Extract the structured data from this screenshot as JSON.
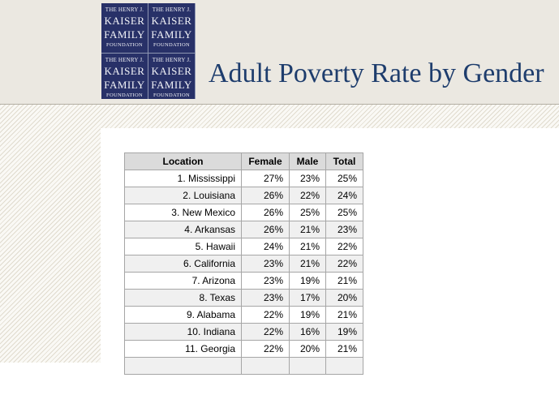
{
  "brand": {
    "logo_lines": [
      "THE HENRY J.",
      "KAISER",
      "FAMILY",
      "FOUNDATION"
    ]
  },
  "header": {
    "title": "Adult Poverty Rate by Gender"
  },
  "table": {
    "columns": [
      "Location",
      "Female",
      "Male",
      "Total"
    ],
    "rows": [
      [
        "1. Mississippi",
        "27%",
        "23%",
        "25%"
      ],
      [
        "2. Louisiana",
        "26%",
        "22%",
        "24%"
      ],
      [
        "3. New Mexico",
        "26%",
        "25%",
        "25%"
      ],
      [
        "4. Arkansas",
        "26%",
        "21%",
        "23%"
      ],
      [
        "5. Hawaii",
        "24%",
        "21%",
        "22%"
      ],
      [
        "6. California",
        "23%",
        "21%",
        "22%"
      ],
      [
        "7. Arizona",
        "23%",
        "19%",
        "21%"
      ],
      [
        "8. Texas",
        "23%",
        "17%",
        "20%"
      ],
      [
        "9. Alabama",
        "22%",
        "19%",
        "21%"
      ],
      [
        "10. Indiana",
        "22%",
        "16%",
        "19%"
      ],
      [
        "11. Georgia",
        "22%",
        "20%",
        "21%"
      ],
      [
        "",
        "",
        "",
        ""
      ]
    ]
  },
  "colors": {
    "brand_navy": "#283168",
    "logo_grid_line": "#8d95b2",
    "title_text": "#1e3d6d",
    "masthead_bg": "#ebe8e1",
    "masthead_border": "#b3aea3",
    "stripe_line": "#e0dbce",
    "stripe_bg": "#faf9f5",
    "table_border": "#a6a6a6",
    "table_header_bg": "#dbdbdb",
    "row_alt_bg": "#f0f0f0"
  }
}
